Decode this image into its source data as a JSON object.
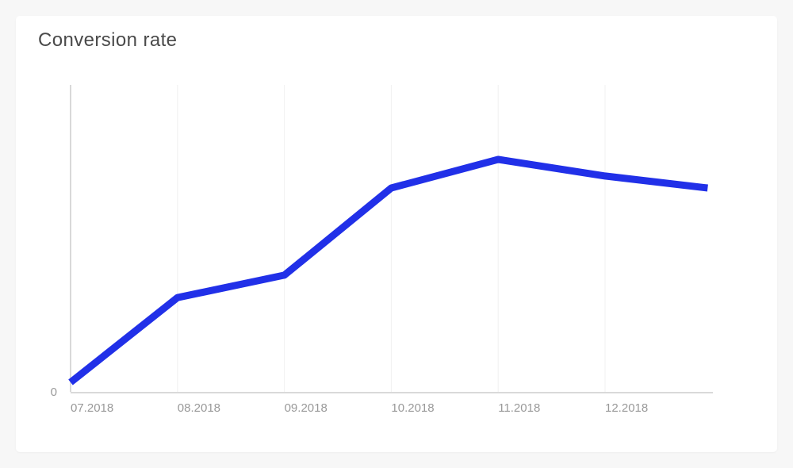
{
  "card": {
    "title": "Conversion rate"
  },
  "chart_data": {
    "type": "line",
    "title": "Conversion rate",
    "xlabel": "",
    "ylabel": "",
    "x_tick_labels": [
      "07.2018",
      "08.2018",
      "09.2018",
      "10.2018",
      "11.2018",
      "12.2018"
    ],
    "y_tick_labels": [
      "0"
    ],
    "ylim": [
      0,
      100
    ],
    "grid": "vertical-only",
    "legend": "none",
    "series": [
      {
        "name": "Conversion rate",
        "x_month_index": [
          0,
          1,
          2,
          3,
          4,
          5,
          5.96
        ],
        "values": [
          3.1,
          30.7,
          38.0,
          66.4,
          75.7,
          70.3,
          66.4
        ]
      }
    ],
    "colors": {
      "line": "#2130e8",
      "grid": "#f0f0f0",
      "axis": "#d9d9d9",
      "tick_label": "#999999",
      "title": "#4a4a4a",
      "card_bg": "#ffffff",
      "page_bg": "#f7f7f7"
    }
  }
}
